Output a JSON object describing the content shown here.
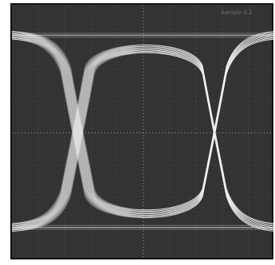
{
  "chart_data": {
    "type": "line",
    "title": "",
    "subtitle": "",
    "xlabel": "",
    "ylabel": "",
    "corner_label": "Sample 6.1",
    "grid": true,
    "grid_divisions": {
      "x": 10,
      "y": 8
    },
    "x_range": [
      0,
      10
    ],
    "y_range": [
      -4,
      4
    ],
    "eye_levels": {
      "high": 3.05,
      "low": -2.95
    },
    "crossing_x": [
      2.5,
      7.7
    ],
    "colors": {
      "background": "#333333",
      "trace": "#f2f2f2",
      "grid": "#c8c8c8",
      "frame": "#111111"
    }
  }
}
